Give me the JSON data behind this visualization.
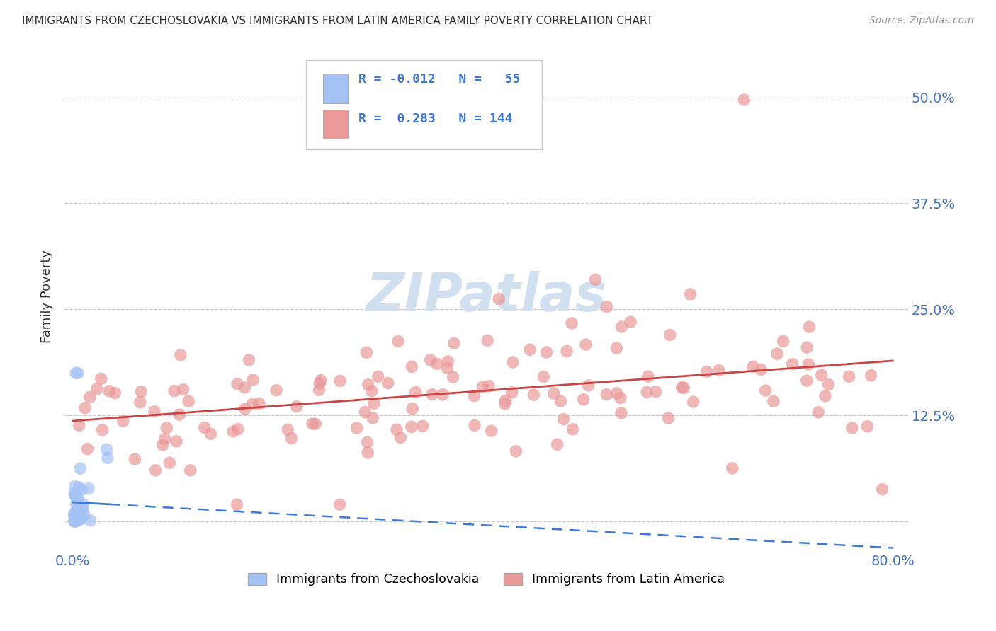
{
  "title": "IMMIGRANTS FROM CZECHOSLOVAKIA VS IMMIGRANTS FROM LATIN AMERICA FAMILY POVERTY CORRELATION CHART",
  "source": "Source: ZipAtlas.com",
  "ylabel": "Family Poverty",
  "color_czech": "#a4c2f4",
  "color_latin": "#ea9999",
  "color_czech_line": "#3c78d8",
  "color_latin_line": "#cc4444",
  "background_color": "#ffffff",
  "watermark": "ZIPatlas",
  "watermark_color": "#d0e0f0",
  "legend_text_color": "#3c78d8",
  "r_czech": -0.012,
  "n_czech": 55,
  "r_latin": 0.283,
  "n_latin": 144
}
